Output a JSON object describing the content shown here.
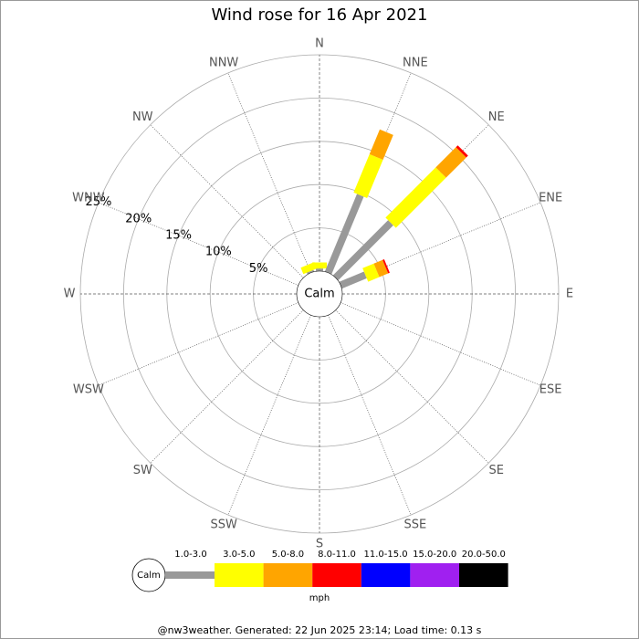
{
  "chart_data": {
    "type": "windrose",
    "title": "Wind rose for 16 Apr 2021",
    "directions": [
      "N",
      "NNE",
      "NE",
      "ENE",
      "E",
      "ESE",
      "SE",
      "SSE",
      "S",
      "SSW",
      "SW",
      "WSW",
      "W",
      "WNW",
      "NW",
      "NNW"
    ],
    "calm_label": "Calm",
    "rlim": [
      0,
      25
    ],
    "rticks": [
      {
        "value": 5,
        "label": "5%"
      },
      {
        "value": 10,
        "label": "10%"
      },
      {
        "value": 15,
        "label": "15%"
      },
      {
        "value": 20,
        "label": "20%"
      },
      {
        "value": 25,
        "label": "25%"
      }
    ],
    "series": [
      {
        "name": "1.0-3.0",
        "color": "#999999",
        "values": [
          0.3,
          9.7,
          9.0,
          3.1,
          0,
          0,
          0,
          0,
          0,
          0,
          0,
          0,
          0,
          0,
          0,
          0.2
        ]
      },
      {
        "name": "3.0-5.0",
        "color": "#ffff00",
        "values": [
          0.7,
          4.8,
          8.2,
          1.4,
          0,
          0,
          0,
          0,
          0,
          0,
          0,
          0,
          0,
          0,
          0,
          0.8
        ]
      },
      {
        "name": "5.0-8.0",
        "color": "#ffa500",
        "values": [
          0,
          3.1,
          3.3,
          1.1,
          0,
          0,
          0,
          0,
          0,
          0,
          0,
          0,
          0,
          0,
          0,
          0
        ]
      },
      {
        "name": "8.0-11.0",
        "color": "#ff0000",
        "values": [
          0,
          0,
          0.3,
          0.2,
          0,
          0,
          0,
          0,
          0,
          0,
          0,
          0,
          0,
          0,
          0,
          0
        ]
      },
      {
        "name": "11.0-15.0",
        "color": "#0000ff",
        "values": [
          0,
          0,
          0,
          0,
          0,
          0,
          0,
          0,
          0,
          0,
          0,
          0,
          0,
          0,
          0,
          0
        ]
      },
      {
        "name": "15.0-20.0",
        "color": "#a020f0",
        "values": [
          0,
          0,
          0,
          0,
          0,
          0,
          0,
          0,
          0,
          0,
          0,
          0,
          0,
          0,
          0,
          0
        ]
      },
      {
        "name": "20.0-50.0",
        "color": "#000000",
        "values": [
          0,
          0,
          0,
          0,
          0,
          0,
          0,
          0,
          0,
          0,
          0,
          0,
          0,
          0,
          0,
          0
        ]
      }
    ],
    "legend_unit": "mph",
    "footer": "@nw3weather. Generated: 22 Jun 2025 23:14; Load time: 0.13 s"
  }
}
